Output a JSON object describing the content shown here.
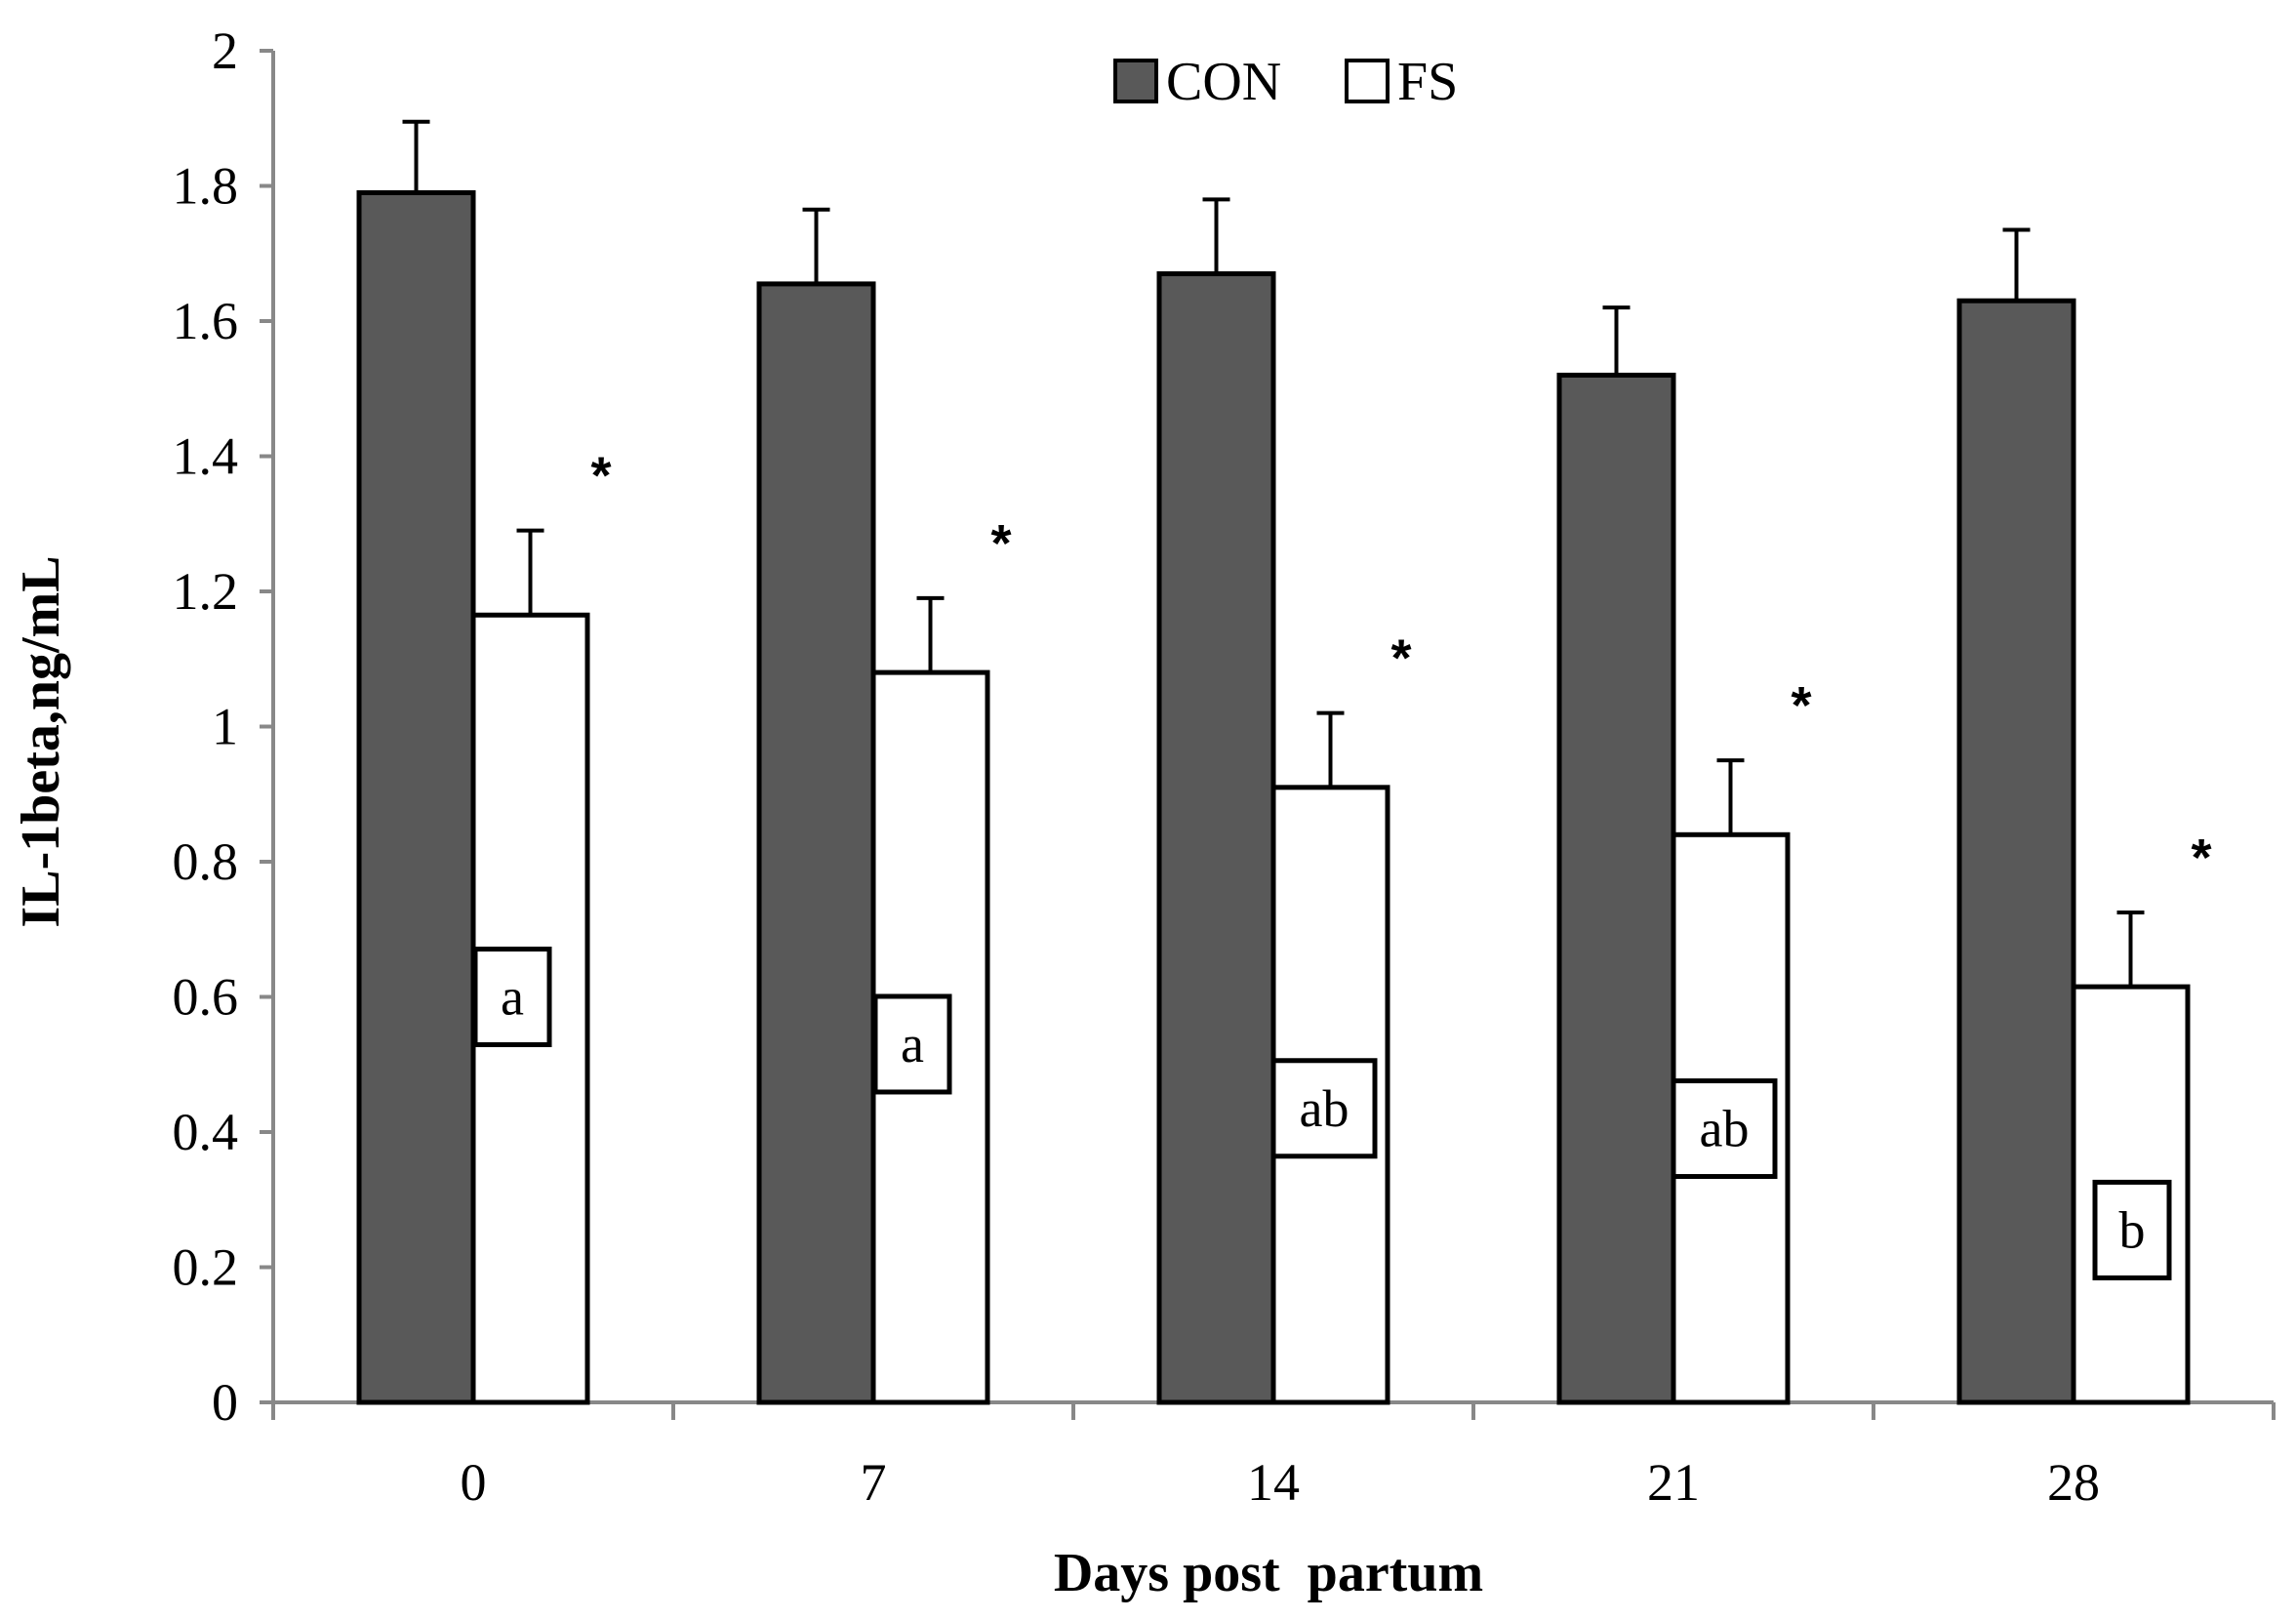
{
  "chart_data": {
    "type": "bar",
    "title": "",
    "xlabel": "Days post  partum",
    "ylabel": "IL-1beta,ng/mL",
    "ylim": [
      0,
      2
    ],
    "y_ticks": [
      "0",
      "0.2",
      "0.4",
      "0.6",
      "0.8",
      "1",
      "1.2",
      "1.4",
      "1.6",
      "1.8",
      "2"
    ],
    "categories": [
      "0",
      "7",
      "14",
      "21",
      "28"
    ],
    "series": [
      {
        "name": "CON",
        "color": "#595959",
        "values": [
          1.79,
          1.655,
          1.67,
          1.52,
          1.63
        ],
        "errors": [
          0.105,
          0.11,
          0.11,
          0.1,
          0.105
        ]
      },
      {
        "name": "FS",
        "color": "#ffffff",
        "values": [
          1.165,
          1.08,
          0.91,
          0.84,
          0.615
        ],
        "errors": [
          0.125,
          0.11,
          0.11,
          0.11,
          0.11
        ]
      }
    ],
    "significance_markers": [
      "*",
      "*",
      "*",
      "*",
      "*"
    ],
    "group_letters": [
      "a",
      "a",
      "ab",
      "ab",
      "b"
    ],
    "legend": {
      "position": "top-center",
      "entries": [
        "CON",
        "FS"
      ]
    },
    "grid": false
  }
}
